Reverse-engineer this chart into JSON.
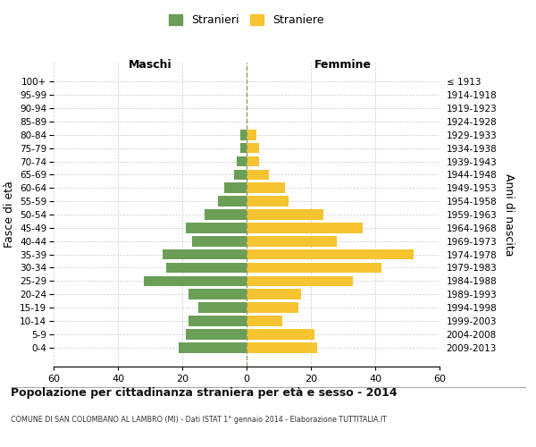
{
  "age_groups": [
    "100+",
    "95-99",
    "90-94",
    "85-89",
    "80-84",
    "75-79",
    "70-74",
    "65-69",
    "60-64",
    "55-59",
    "50-54",
    "45-49",
    "40-44",
    "35-39",
    "30-34",
    "25-29",
    "20-24",
    "15-19",
    "10-14",
    "5-9",
    "0-4"
  ],
  "birth_years": [
    "≤ 1913",
    "1914-1918",
    "1919-1923",
    "1924-1928",
    "1929-1933",
    "1934-1938",
    "1939-1943",
    "1944-1948",
    "1949-1953",
    "1954-1958",
    "1959-1963",
    "1964-1968",
    "1969-1973",
    "1974-1978",
    "1979-1983",
    "1984-1988",
    "1989-1993",
    "1994-1998",
    "1999-2003",
    "2004-2008",
    "2009-2013"
  ],
  "males": [
    0,
    0,
    0,
    0,
    2,
    2,
    3,
    4,
    7,
    9,
    13,
    19,
    17,
    26,
    25,
    32,
    18,
    15,
    18,
    19,
    21
  ],
  "females": [
    0,
    0,
    0,
    0,
    3,
    4,
    4,
    7,
    12,
    13,
    24,
    36,
    28,
    52,
    42,
    33,
    17,
    16,
    11,
    21,
    22
  ],
  "male_color": "#6b9e57",
  "female_color": "#f5c430",
  "male_label": "Stranieri",
  "female_label": "Straniere",
  "title": "Popolazione per cittadinanza straniera per età e sesso - 2014",
  "subtitle": "COMUNE DI SAN COLOMBANO AL LAMBRO (MI) - Dati ISTAT 1° gennaio 2014 - Elaborazione TUTTITALIA.IT",
  "left_header": "Maschi",
  "right_header": "Femmine",
  "yleft_label": "Fasce di età",
  "yright_label": "Anni di nascita",
  "xlim": 60,
  "background_color": "#ffffff",
  "grid_color": "#cccccc",
  "dashed_line_color": "#999966"
}
